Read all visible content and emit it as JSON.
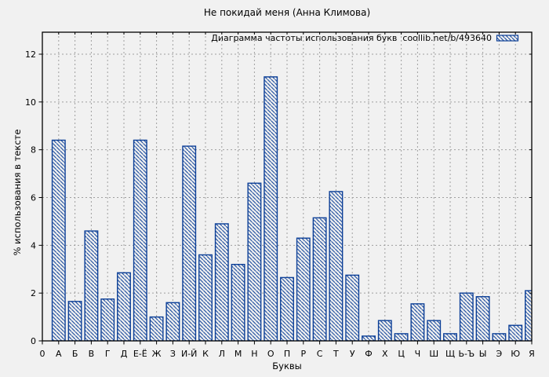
{
  "title": "Не покидай меня (Анна Климова)",
  "legend": {
    "label": "Диаграмма частоты использования букв  coollib.net/b/493640"
  },
  "axes": {
    "ylabel": "% использования в тексте",
    "xlabel": "Буквы",
    "x_origin_label": "0"
  },
  "colors": {
    "bar": "#0c3f97",
    "grid": "#a0a0a0",
    "axis": "#000000",
    "background": "#f1f1f1",
    "text": "#000000"
  },
  "chart_data": {
    "type": "bar",
    "title": "Не покидай меня (Анна Климова)",
    "series_label": "Диаграмма частоты использования букв  coollib.net/b/493640",
    "categories": [
      "А",
      "Б",
      "В",
      "Г",
      "Д",
      "Е-Ё",
      "Ж",
      "З",
      "И-Й",
      "К",
      "Л",
      "М",
      "Н",
      "О",
      "П",
      "Р",
      "С",
      "Т",
      "У",
      "Ф",
      "Х",
      "Ц",
      "Ч",
      "Ш",
      "Щ",
      "Ь-Ъ",
      "Ы",
      "Э",
      "Ю",
      "Я"
    ],
    "values": [
      8.4,
      1.65,
      4.6,
      1.75,
      2.85,
      8.4,
      1.0,
      1.6,
      8.15,
      3.6,
      4.9,
      3.2,
      6.6,
      11.05,
      2.65,
      4.3,
      5.15,
      6.25,
      2.75,
      0.2,
      0.85,
      0.3,
      1.55,
      0.85,
      0.3,
      2.0,
      1.85,
      0.3,
      0.65,
      2.1
    ],
    "xlabel": "Буквы",
    "ylabel": "% использования в тексте",
    "ylim": [
      0,
      12.92
    ],
    "yticks": [
      0,
      2,
      4,
      6,
      8,
      10,
      12
    ],
    "x_origin_label": "0",
    "grid": true,
    "legend_position": "top-right-inside",
    "hatch": "diagonal-backslash"
  }
}
